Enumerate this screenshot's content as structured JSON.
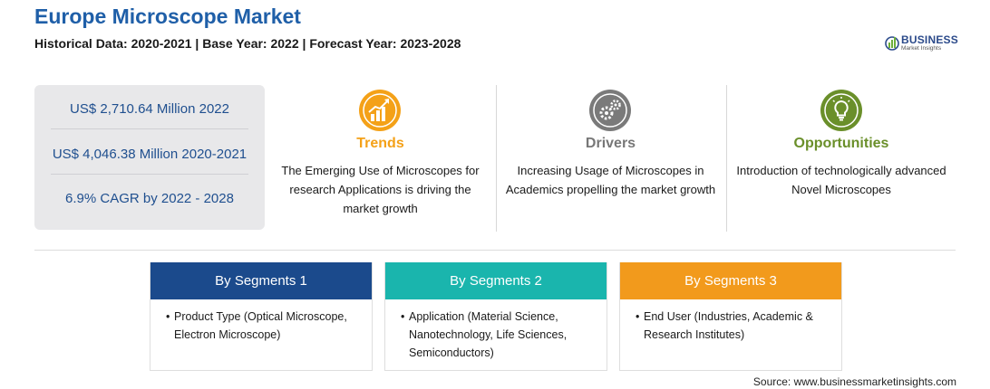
{
  "header": {
    "title": "Europe Microscope Market",
    "subtitle": "Historical Data: 2020-2021 | Base Year: 2022 | Forecast Year: 2023-2028"
  },
  "logo": {
    "brand": "BUSINESS",
    "tagline": "Market Insights",
    "icon": "globe-bars-icon"
  },
  "stats": [
    "US$ 2,710.64 Million 2022",
    "US$ 4,046.38 Million 2020-2021",
    "6.9% CAGR by 2022 - 2028"
  ],
  "columns": {
    "trends": {
      "title": "Trends",
      "text": "The Emerging Use of Microscopes for research Applications is driving the market growth",
      "icon": "rising-chart-icon",
      "color": "#f4a118"
    },
    "drivers": {
      "title": "Drivers",
      "text": "Increasing Usage of Microscopes in Academics propelling the market growth",
      "icon": "gears-icon",
      "color": "#777777"
    },
    "opportunities": {
      "title": "Opportunities",
      "text": "Introduction of technologically advanced Novel Microscopes",
      "icon": "lightbulb-icon",
      "color": "#6a8f2a"
    }
  },
  "segments": [
    {
      "title": "By Segments 1",
      "bullet": "•",
      "text": "Product Type (Optical Microscope, Electron Microscope)",
      "color": "#1b4a8c"
    },
    {
      "title": "By Segments 2",
      "bullet": "•",
      "text": "Application (Material Science, Nanotechnology, Life Sciences, Semiconductors)",
      "color": "#1ab5ad"
    },
    {
      "title": "By Segments 3",
      "bullet": "•",
      "text": "End User (Industries, Academic & Research Institutes)",
      "color": "#f29a1c"
    }
  ],
  "source": "Source: www.businessmarketinsights.com"
}
